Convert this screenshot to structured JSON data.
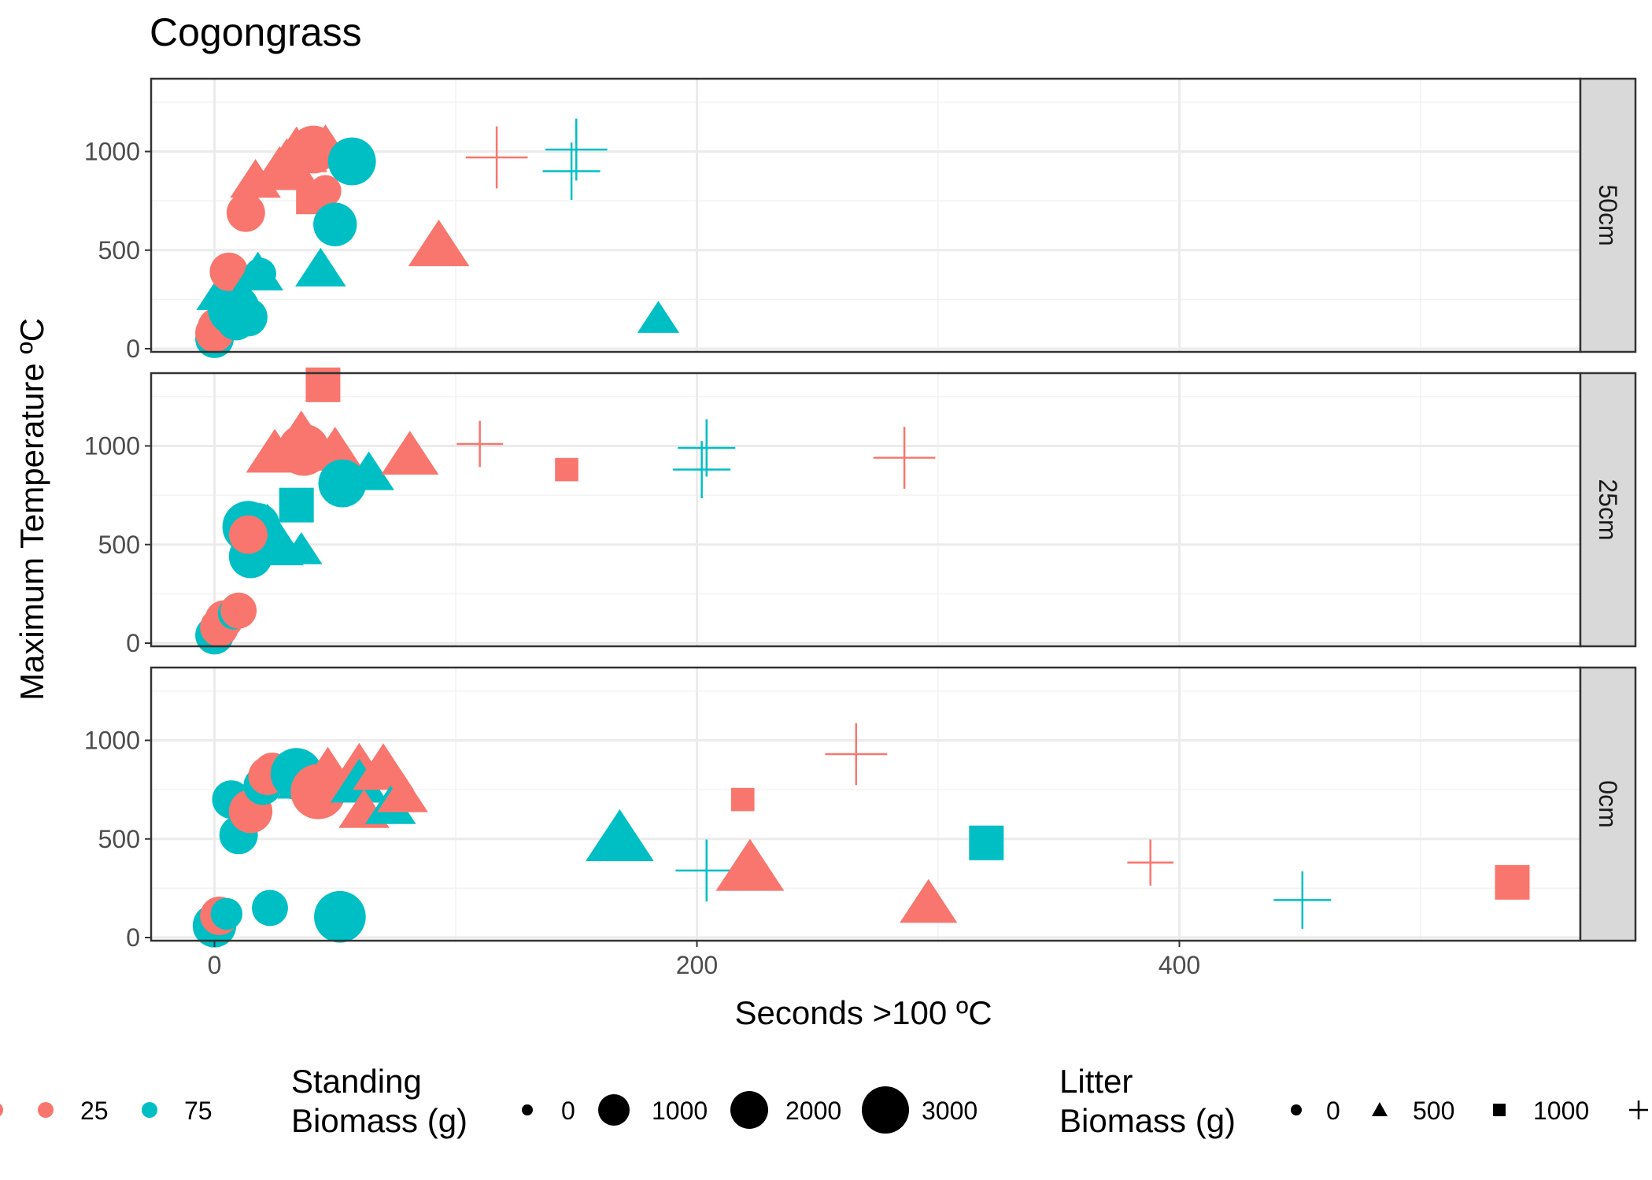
{
  "chart_data": {
    "type": "scatter",
    "title": "Cogongrass",
    "xlabel": "Seconds >100 ºC",
    "ylabel": "Maximum Temperature ºC",
    "xlim": [
      -13,
      565
    ],
    "ylim": [
      -10,
      1350
    ],
    "x_ticks": [
      "0",
      "200",
      "400"
    ],
    "y_ticks": [
      "0",
      "500",
      "1000"
    ],
    "grid": true,
    "legend_position": "bottom",
    "series_colors": {
      "25": "#F8766D",
      "75": "#00BFC4"
    },
    "legends": {
      "color": {
        "title": "",
        "labels": [
          "25",
          "75"
        ]
      },
      "size": {
        "title_lines": [
          "Standing",
          "Biomass (g)"
        ],
        "labels": [
          "0",
          "1000",
          "2000",
          "3000"
        ]
      },
      "shape": {
        "title_lines": [
          "Litter",
          "Biomass (g)"
        ],
        "labels": [
          "0",
          "500",
          "1000",
          ""
        ],
        "shapes": [
          "circle",
          "triangle",
          "square",
          "plus"
        ]
      }
    },
    "facets": [
      {
        "label": "50cm",
        "points": [
          {
            "x": 0,
            "y": 50,
            "c": "75",
            "s": 1000,
            "shape": "circle"
          },
          {
            "x": 0,
            "y": 80,
            "c": "25",
            "s": 1000,
            "shape": "circle"
          },
          {
            "x": 1,
            "y": 110,
            "c": "25",
            "s": 1000,
            "shape": "circle"
          },
          {
            "x": 8,
            "y": 200,
            "c": "75",
            "s": 2500,
            "shape": "circle"
          },
          {
            "x": 9,
            "y": 140,
            "c": "75",
            "s": 1000,
            "shape": "circle"
          },
          {
            "x": 14,
            "y": 160,
            "c": "75",
            "s": 1000,
            "shape": "circle"
          },
          {
            "x": 3,
            "y": 280,
            "c": "75",
            "s": 1000,
            "shape": "triangle"
          },
          {
            "x": 6,
            "y": 390,
            "c": "25",
            "s": 1000,
            "shape": "circle"
          },
          {
            "x": 18,
            "y": 380,
            "c": "75",
            "s": 1000,
            "shape": "triangle"
          },
          {
            "x": 19,
            "y": 380,
            "c": "75",
            "s": 500,
            "shape": "circle"
          },
          {
            "x": 13,
            "y": 690,
            "c": "25",
            "s": 1000,
            "shape": "circle"
          },
          {
            "x": 17,
            "y": 850,
            "c": "25",
            "s": 1000,
            "shape": "triangle"
          },
          {
            "x": 27,
            "y": 900,
            "c": "25",
            "s": 1500,
            "shape": "triangle"
          },
          {
            "x": 30,
            "y": 940,
            "c": "25",
            "s": 1500,
            "shape": "triangle"
          },
          {
            "x": 34,
            "y": 1000,
            "c": "25",
            "s": 1500,
            "shape": "triangle"
          },
          {
            "x": 28,
            "y": 880,
            "c": "25",
            "s": 200,
            "shape": "square"
          },
          {
            "x": 37,
            "y": 900,
            "c": "25",
            "s": 1000,
            "shape": "plus"
          },
          {
            "x": 41,
            "y": 1010,
            "c": "25",
            "s": 2000,
            "shape": "circle"
          },
          {
            "x": 46,
            "y": 1010,
            "c": "25",
            "s": 1500,
            "shape": "triangle"
          },
          {
            "x": 41,
            "y": 770,
            "c": "25",
            "s": 1000,
            "shape": "square"
          },
          {
            "x": 46,
            "y": 800,
            "c": "25",
            "s": 500,
            "shape": "circle"
          },
          {
            "x": 57,
            "y": 950,
            "c": "75",
            "s": 2000,
            "shape": "circle"
          },
          {
            "x": 50,
            "y": 630,
            "c": "75",
            "s": 1500,
            "shape": "circle"
          },
          {
            "x": 44,
            "y": 400,
            "c": "75",
            "s": 1000,
            "shape": "triangle"
          },
          {
            "x": 93,
            "y": 520,
            "c": "25",
            "s": 1800,
            "shape": "triangle"
          },
          {
            "x": 117,
            "y": 970,
            "c": "25",
            "s": 2500,
            "shape": "plus"
          },
          {
            "x": 150,
            "y": 1010,
            "c": "75",
            "s": 2500,
            "shape": "plus"
          },
          {
            "x": 148,
            "y": 900,
            "c": "75",
            "s": 2000,
            "shape": "plus"
          },
          {
            "x": 184,
            "y": 150,
            "c": "75",
            "s": 500,
            "shape": "triangle"
          }
        ]
      },
      {
        "label": "25cm",
        "points": [
          {
            "x": 0,
            "y": 40,
            "c": "75",
            "s": 1000,
            "shape": "circle"
          },
          {
            "x": 2,
            "y": 80,
            "c": "25",
            "s": 1000,
            "shape": "circle"
          },
          {
            "x": 4,
            "y": 120,
            "c": "25",
            "s": 1000,
            "shape": "circle"
          },
          {
            "x": 8,
            "y": 150,
            "c": "75",
            "s": 500,
            "shape": "circle"
          },
          {
            "x": 10,
            "y": 165,
            "c": "25",
            "s": 800,
            "shape": "circle"
          },
          {
            "x": 14,
            "y": 590,
            "c": "75",
            "s": 2500,
            "shape": "circle"
          },
          {
            "x": 18,
            "y": 600,
            "c": "75",
            "s": 1500,
            "shape": "circle"
          },
          {
            "x": 22,
            "y": 580,
            "c": "75",
            "s": 1500,
            "shape": "triangle"
          },
          {
            "x": 25,
            "y": 490,
            "c": "75",
            "s": 1500,
            "shape": "triangle"
          },
          {
            "x": 15,
            "y": 440,
            "c": "75",
            "s": 1500,
            "shape": "circle"
          },
          {
            "x": 14,
            "y": 550,
            "c": "25",
            "s": 1000,
            "shape": "circle"
          },
          {
            "x": 36,
            "y": 470,
            "c": "75",
            "s": 500,
            "shape": "triangle"
          },
          {
            "x": 34,
            "y": 700,
            "c": "75",
            "s": 1000,
            "shape": "square"
          },
          {
            "x": 25,
            "y": 960,
            "c": "25",
            "s": 1500,
            "shape": "triangle"
          },
          {
            "x": 33,
            "y": 990,
            "c": "25",
            "s": 1500,
            "shape": "triangle"
          },
          {
            "x": 36,
            "y": 1040,
            "c": "25",
            "s": 2000,
            "shape": "triangle"
          },
          {
            "x": 37,
            "y": 980,
            "c": "25",
            "s": 2500,
            "shape": "circle"
          },
          {
            "x": 50,
            "y": 970,
            "c": "25",
            "s": 1500,
            "shape": "triangle"
          },
          {
            "x": 53,
            "y": 810,
            "c": "75",
            "s": 2000,
            "shape": "circle"
          },
          {
            "x": 64,
            "y": 860,
            "c": "75",
            "s": 1000,
            "shape": "triangle"
          },
          {
            "x": 45,
            "y": 1310,
            "c": "25",
            "s": 1000,
            "shape": "square"
          },
          {
            "x": 81,
            "y": 950,
            "c": "25",
            "s": 1500,
            "shape": "triangle"
          },
          {
            "x": 110,
            "y": 1010,
            "c": "25",
            "s": 1000,
            "shape": "plus"
          },
          {
            "x": 146,
            "y": 880,
            "c": "25",
            "s": 200,
            "shape": "square"
          },
          {
            "x": 204,
            "y": 990,
            "c": "75",
            "s": 2000,
            "shape": "plus"
          },
          {
            "x": 202,
            "y": 880,
            "c": "75",
            "s": 2000,
            "shape": "plus"
          },
          {
            "x": 286,
            "y": 940,
            "c": "25",
            "s": 2500,
            "shape": "plus"
          }
        ]
      },
      {
        "label": "0cm",
        "points": [
          {
            "x": 0,
            "y": 60,
            "c": "75",
            "s": 1500,
            "shape": "circle"
          },
          {
            "x": 2,
            "y": 110,
            "c": "25",
            "s": 1000,
            "shape": "circle"
          },
          {
            "x": 5,
            "y": 120,
            "c": "75",
            "s": 500,
            "shape": "circle"
          },
          {
            "x": 23,
            "y": 150,
            "c": "75",
            "s": 800,
            "shape": "circle"
          },
          {
            "x": 52,
            "y": 105,
            "c": "75",
            "s": 2500,
            "shape": "circle"
          },
          {
            "x": 10,
            "y": 520,
            "c": "75",
            "s": 1000,
            "shape": "circle"
          },
          {
            "x": 7,
            "y": 700,
            "c": "75",
            "s": 1000,
            "shape": "circle"
          },
          {
            "x": 15,
            "y": 640,
            "c": "25",
            "s": 1500,
            "shape": "circle"
          },
          {
            "x": 20,
            "y": 770,
            "c": "75",
            "s": 1000,
            "shape": "circle"
          },
          {
            "x": 22,
            "y": 820,
            "c": "25",
            "s": 1000,
            "shape": "circle"
          },
          {
            "x": 24,
            "y": 840,
            "c": "25",
            "s": 1000,
            "shape": "circle"
          },
          {
            "x": 34,
            "y": 830,
            "c": "75",
            "s": 2500,
            "shape": "circle"
          },
          {
            "x": 38,
            "y": 800,
            "c": "75",
            "s": 1500,
            "shape": "triangle"
          },
          {
            "x": 43,
            "y": 740,
            "c": "25",
            "s": 3000,
            "shape": "circle"
          },
          {
            "x": 47,
            "y": 840,
            "c": "25",
            "s": 1500,
            "shape": "triangle"
          },
          {
            "x": 60,
            "y": 860,
            "c": "25",
            "s": 1500,
            "shape": "triangle"
          },
          {
            "x": 60,
            "y": 780,
            "c": "75",
            "s": 1500,
            "shape": "triangle"
          },
          {
            "x": 62,
            "y": 640,
            "c": "25",
            "s": 1000,
            "shape": "triangle"
          },
          {
            "x": 70,
            "y": 850,
            "c": "25",
            "s": 1800,
            "shape": "triangle"
          },
          {
            "x": 73,
            "y": 660,
            "c": "75",
            "s": 1000,
            "shape": "triangle"
          },
          {
            "x": 78,
            "y": 720,
            "c": "25",
            "s": 1000,
            "shape": "triangle"
          },
          {
            "x": 168,
            "y": 500,
            "c": "75",
            "s": 2500,
            "shape": "triangle"
          },
          {
            "x": 219,
            "y": 700,
            "c": "25",
            "s": 200,
            "shape": "square"
          },
          {
            "x": 204,
            "y": 340,
            "c": "75",
            "s": 2500,
            "shape": "plus"
          },
          {
            "x": 222,
            "y": 350,
            "c": "25",
            "s": 2500,
            "shape": "triangle"
          },
          {
            "x": 266,
            "y": 930,
            "c": "25",
            "s": 2500,
            "shape": "plus"
          },
          {
            "x": 296,
            "y": 170,
            "c": "25",
            "s": 1500,
            "shape": "triangle"
          },
          {
            "x": 320,
            "y": 480,
            "c": "75",
            "s": 1000,
            "shape": "square"
          },
          {
            "x": 388,
            "y": 380,
            "c": "25",
            "s": 1000,
            "shape": "plus"
          },
          {
            "x": 451,
            "y": 190,
            "c": "75",
            "s": 2000,
            "shape": "plus"
          },
          {
            "x": 538,
            "y": 280,
            "c": "25",
            "s": 1000,
            "shape": "square"
          }
        ]
      }
    ]
  }
}
